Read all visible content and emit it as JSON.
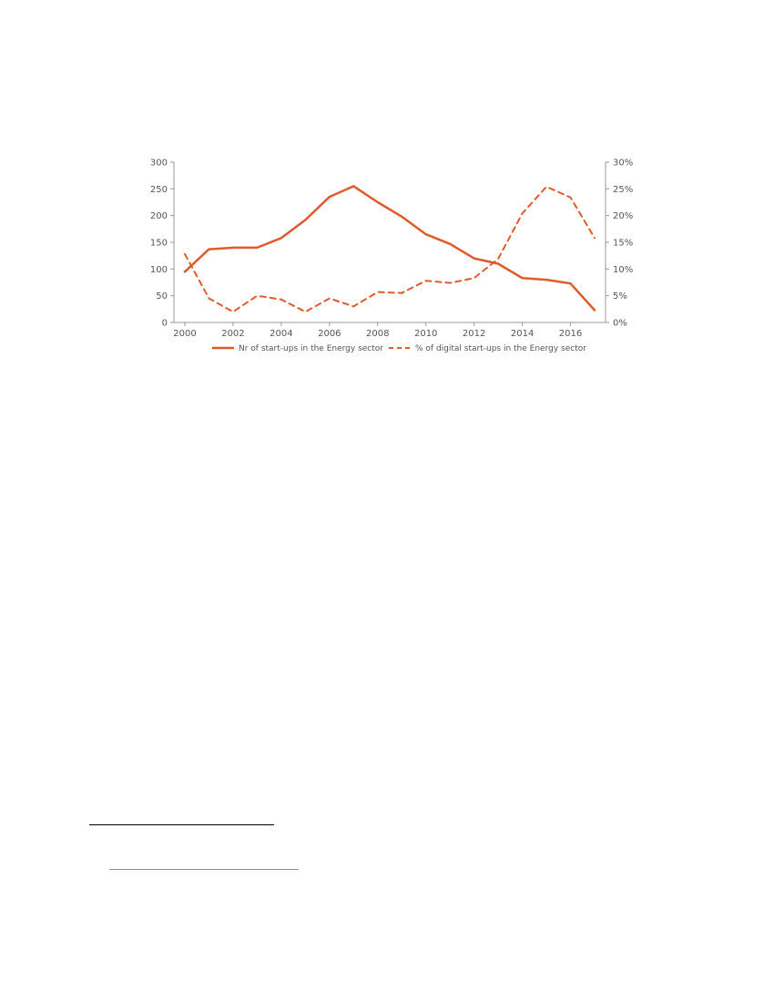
{
  "chart_data": {
    "type": "line",
    "x": [
      2000,
      2001,
      2002,
      2003,
      2004,
      2005,
      2006,
      2007,
      2008,
      2009,
      2010,
      2011,
      2012,
      2013,
      2014,
      2015,
      2016,
      2017
    ],
    "x_tick_labels": [
      "2000",
      "2002",
      "2004",
      "2006",
      "2008",
      "2010",
      "2012",
      "2014",
      "2016"
    ],
    "series": [
      {
        "name": "Nr of start-ups in the Energy sector",
        "axis": "left",
        "style": "solid",
        "color": "#e05a2b",
        "values": [
          95,
          137,
          140,
          140,
          158,
          192,
          235,
          255,
          225,
          198,
          165,
          147,
          120,
          110,
          83,
          80,
          73,
          23
        ]
      },
      {
        "name": "% of digital start-ups in the Energy sector",
        "axis": "right",
        "style": "dashed",
        "color": "#e05a2b",
        "values": [
          12.8,
          4.5,
          2.0,
          5.0,
          4.3,
          2.0,
          4.5,
          3.0,
          5.7,
          5.5,
          7.8,
          7.4,
          8.3,
          11.9,
          20.4,
          25.4,
          23.4,
          15.8
        ]
      }
    ],
    "y_left": {
      "ylim": [
        0,
        300
      ],
      "ticks": [
        "0",
        "50",
        "100",
        "150",
        "200",
        "250",
        "300"
      ]
    },
    "y_right": {
      "ylim": [
        0,
        30
      ],
      "ticks": [
        "0%",
        "5%",
        "10%",
        "15%",
        "20%",
        "25%",
        "30%"
      ]
    },
    "grid": false,
    "legend_position": "bottom-center"
  },
  "colors": {
    "series": "#e05a2b",
    "axis": "#999999",
    "text": "#555555",
    "link": "#4aa8d8"
  }
}
